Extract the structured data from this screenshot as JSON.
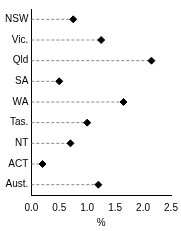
{
  "chart_data": {
    "type": "dot",
    "orientation": "horizontal",
    "categories": [
      "NSW",
      "Vic.",
      "Qld",
      "SA",
      "WA",
      "Tas.",
      "NT",
      "ACT",
      "Aust."
    ],
    "values": [
      0.75,
      1.25,
      2.15,
      0.5,
      1.65,
      1.0,
      0.7,
      0.2,
      1.2
    ],
    "color": "#000000",
    "marker": "diamond",
    "line_style": "dashed",
    "xlabel": "%",
    "xlim": [
      0,
      2.5
    ],
    "xticks": [
      {
        "value": 0,
        "label": "0.0"
      },
      0.5,
      {
        "value": 1,
        "label": "1.0"
      },
      1.5,
      {
        "value": 2,
        "label": "2.0"
      },
      2.5
    ],
    "grid": false
  }
}
